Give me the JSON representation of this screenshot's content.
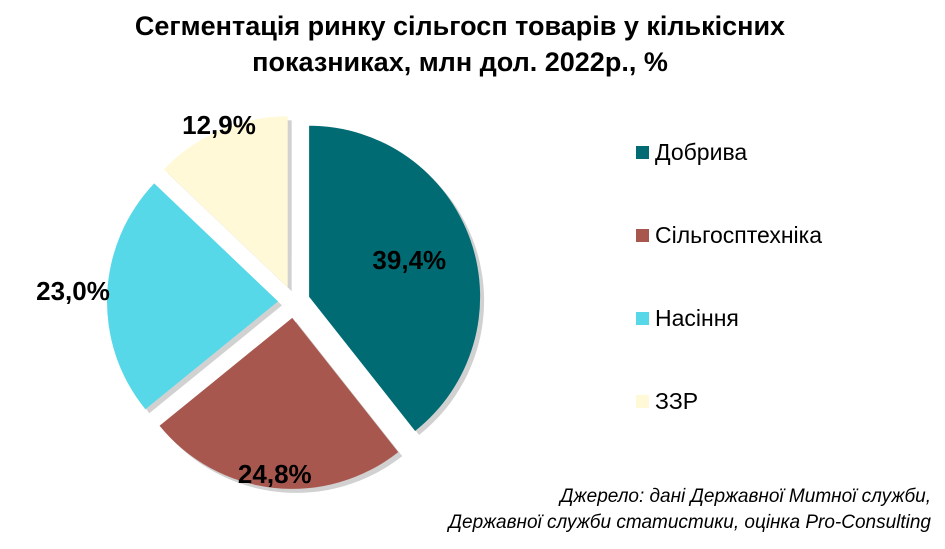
{
  "chart_data": {
    "type": "pie",
    "title": "Сегментація ринку сільгосп товарів у кількісних показниках, млн дол. 2022р., %",
    "title_lines": [
      "Сегментація ринку сільгосп товарів у кількісних",
      "показниках, млн дол. 2022р., %"
    ],
    "categories": [
      "Добрива",
      "Сільгосптехніка",
      "Насіння",
      "ЗЗР"
    ],
    "values": [
      39.4,
      24.8,
      23.0,
      12.9
    ],
    "value_labels": [
      "39,4%",
      "24,8%",
      "23,0%",
      "12,9%"
    ],
    "colors": [
      "#006B73",
      "#A8574E",
      "#56D8E8",
      "#FFF9D7"
    ],
    "exploded": true,
    "legend_position": "right"
  },
  "source_lines": [
    "Джерело: дані Державної Митної служби,",
    "Державної служби статистики, оцінка Pro-Consulting"
  ]
}
